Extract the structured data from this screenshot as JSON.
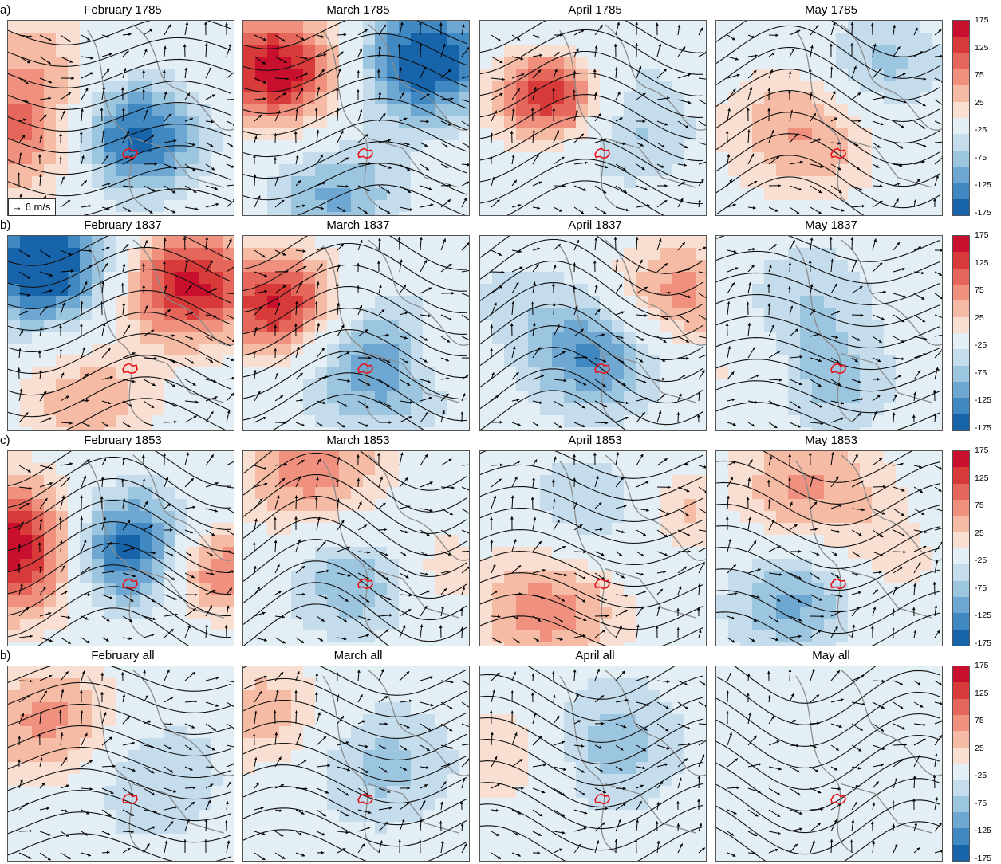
{
  "rows": [
    {
      "label": "a)",
      "titles": [
        "February 1785",
        "March 1785",
        "April 1785",
        "May 1785"
      ]
    },
    {
      "label": "b)",
      "titles": [
        "February 1837",
        "March 1837",
        "April 1837",
        "May 1837"
      ]
    },
    {
      "label": "c)",
      "titles": [
        "February 1853",
        "March 1853",
        "April 1853",
        "May 1853"
      ]
    },
    {
      "label": "b)",
      "titles": [
        "February all",
        "March all",
        "April all",
        "May all"
      ]
    }
  ],
  "wind_legend": "6 m/s",
  "colorbar": {
    "ticks": [
      "175",
      "125",
      "75",
      "25",
      "-25",
      "-75",
      "-125",
      "-175"
    ],
    "colors": [
      "#c8102e",
      "#d83a3a",
      "#e5665a",
      "#ef917e",
      "#f5bba5",
      "#f9ded2",
      "#e3eef5",
      "#c4dcec",
      "#9cc5e0",
      "#6ea8d2",
      "#3f88c2",
      "#1764ab"
    ]
  }
}
